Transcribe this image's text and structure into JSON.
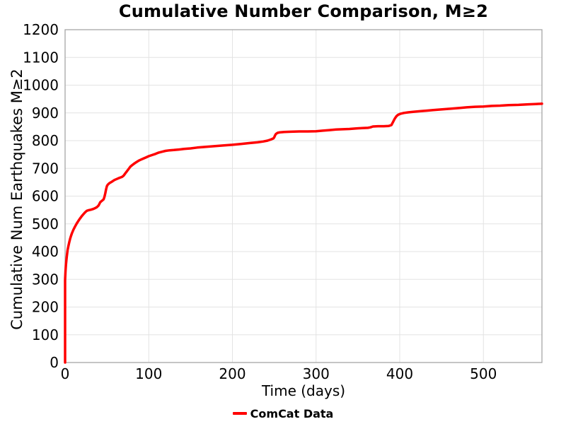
{
  "colors": {
    "line": "#ff0000",
    "grid": "#e3e3e3",
    "spine": "#a6a6a6",
    "text": "#000000",
    "background": "#ffffff"
  },
  "chart_data": {
    "type": "line",
    "title": "Cumulative Number Comparison, M≥2",
    "xlabel": "Time (days)",
    "ylabel": "Cumulative Num Earthquakes M≥2",
    "xlim": [
      0,
      570
    ],
    "ylim": [
      0,
      1200
    ],
    "x_ticks": [
      0,
      100,
      200,
      300,
      400,
      500
    ],
    "y_ticks": [
      0,
      100,
      200,
      300,
      400,
      500,
      600,
      700,
      800,
      900,
      1000,
      1100,
      1200
    ],
    "grid": true,
    "legend": {
      "position": "bottom-center",
      "entries": [
        {
          "label": "ComCat Data",
          "color": "#ff0000"
        }
      ]
    },
    "series": [
      {
        "name": "ComCat Data",
        "color": "#ff0000",
        "line_width": 3.5,
        "points": [
          [
            0,
            0
          ],
          [
            0,
            298
          ],
          [
            0.5,
            330
          ],
          [
            1,
            352
          ],
          [
            1.5,
            368
          ],
          [
            2,
            382
          ],
          [
            3,
            405
          ],
          [
            4,
            420
          ],
          [
            5,
            434
          ],
          [
            6,
            446
          ],
          [
            7,
            456
          ],
          [
            8,
            465
          ],
          [
            10,
            479
          ],
          [
            12,
            491
          ],
          [
            14,
            502
          ],
          [
            16,
            511
          ],
          [
            18,
            520
          ],
          [
            20,
            528
          ],
          [
            22,
            535
          ],
          [
            24,
            542
          ],
          [
            26,
            547
          ],
          [
            28,
            549
          ],
          [
            31,
            551
          ],
          [
            34,
            554
          ],
          [
            36,
            557
          ],
          [
            38,
            560
          ],
          [
            40,
            566
          ],
          [
            41,
            572
          ],
          [
            42,
            578
          ],
          [
            44,
            583
          ],
          [
            46,
            588
          ],
          [
            47,
            597
          ],
          [
            48,
            610
          ],
          [
            49,
            624
          ],
          [
            50,
            636
          ],
          [
            51,
            641
          ],
          [
            53,
            647
          ],
          [
            56,
            652
          ],
          [
            59,
            658
          ],
          [
            62,
            662
          ],
          [
            65,
            666
          ],
          [
            68,
            669
          ],
          [
            70,
            674
          ],
          [
            72,
            682
          ],
          [
            74,
            690
          ],
          [
            76,
            698
          ],
          [
            78,
            706
          ],
          [
            80,
            711
          ],
          [
            82,
            716
          ],
          [
            85,
            722
          ],
          [
            88,
            728
          ],
          [
            91,
            732
          ],
          [
            94,
            736
          ],
          [
            97,
            740
          ],
          [
            100,
            744
          ],
          [
            104,
            748
          ],
          [
            108,
            752
          ],
          [
            112,
            757
          ],
          [
            116,
            760
          ],
          [
            120,
            763
          ],
          [
            125,
            765
          ],
          [
            130,
            766
          ],
          [
            136,
            768
          ],
          [
            142,
            770
          ],
          [
            150,
            772
          ],
          [
            158,
            775
          ],
          [
            166,
            777
          ],
          [
            174,
            779
          ],
          [
            182,
            781
          ],
          [
            190,
            783
          ],
          [
            200,
            785
          ],
          [
            210,
            788
          ],
          [
            220,
            791
          ],
          [
            230,
            794
          ],
          [
            237,
            797
          ],
          [
            242,
            800
          ],
          [
            246,
            804
          ],
          [
            249,
            808
          ],
          [
            250,
            812
          ],
          [
            251,
            819
          ],
          [
            252,
            824
          ],
          [
            254,
            828
          ],
          [
            257,
            830
          ],
          [
            262,
            831
          ],
          [
            270,
            832
          ],
          [
            280,
            833
          ],
          [
            290,
            833
          ],
          [
            300,
            834
          ],
          [
            308,
            836
          ],
          [
            316,
            838
          ],
          [
            324,
            840
          ],
          [
            332,
            841
          ],
          [
            340,
            842
          ],
          [
            348,
            844
          ],
          [
            355,
            845
          ],
          [
            362,
            846
          ],
          [
            365,
            848
          ],
          [
            368,
            851
          ],
          [
            374,
            852
          ],
          [
            381,
            852
          ],
          [
            387,
            853
          ],
          [
            390,
            856
          ],
          [
            392,
            867
          ],
          [
            394,
            879
          ],
          [
            396,
            888
          ],
          [
            398,
            893
          ],
          [
            401,
            897
          ],
          [
            405,
            900
          ],
          [
            410,
            902
          ],
          [
            416,
            904
          ],
          [
            424,
            906
          ],
          [
            432,
            908
          ],
          [
            440,
            910
          ],
          [
            448,
            912
          ],
          [
            456,
            914
          ],
          [
            464,
            916
          ],
          [
            472,
            918
          ],
          [
            480,
            920
          ],
          [
            490,
            922
          ],
          [
            500,
            923
          ],
          [
            510,
            925
          ],
          [
            520,
            926
          ],
          [
            530,
            928
          ],
          [
            542,
            929
          ],
          [
            554,
            931
          ],
          [
            562,
            932
          ],
          [
            570,
            933
          ]
        ]
      }
    ]
  }
}
